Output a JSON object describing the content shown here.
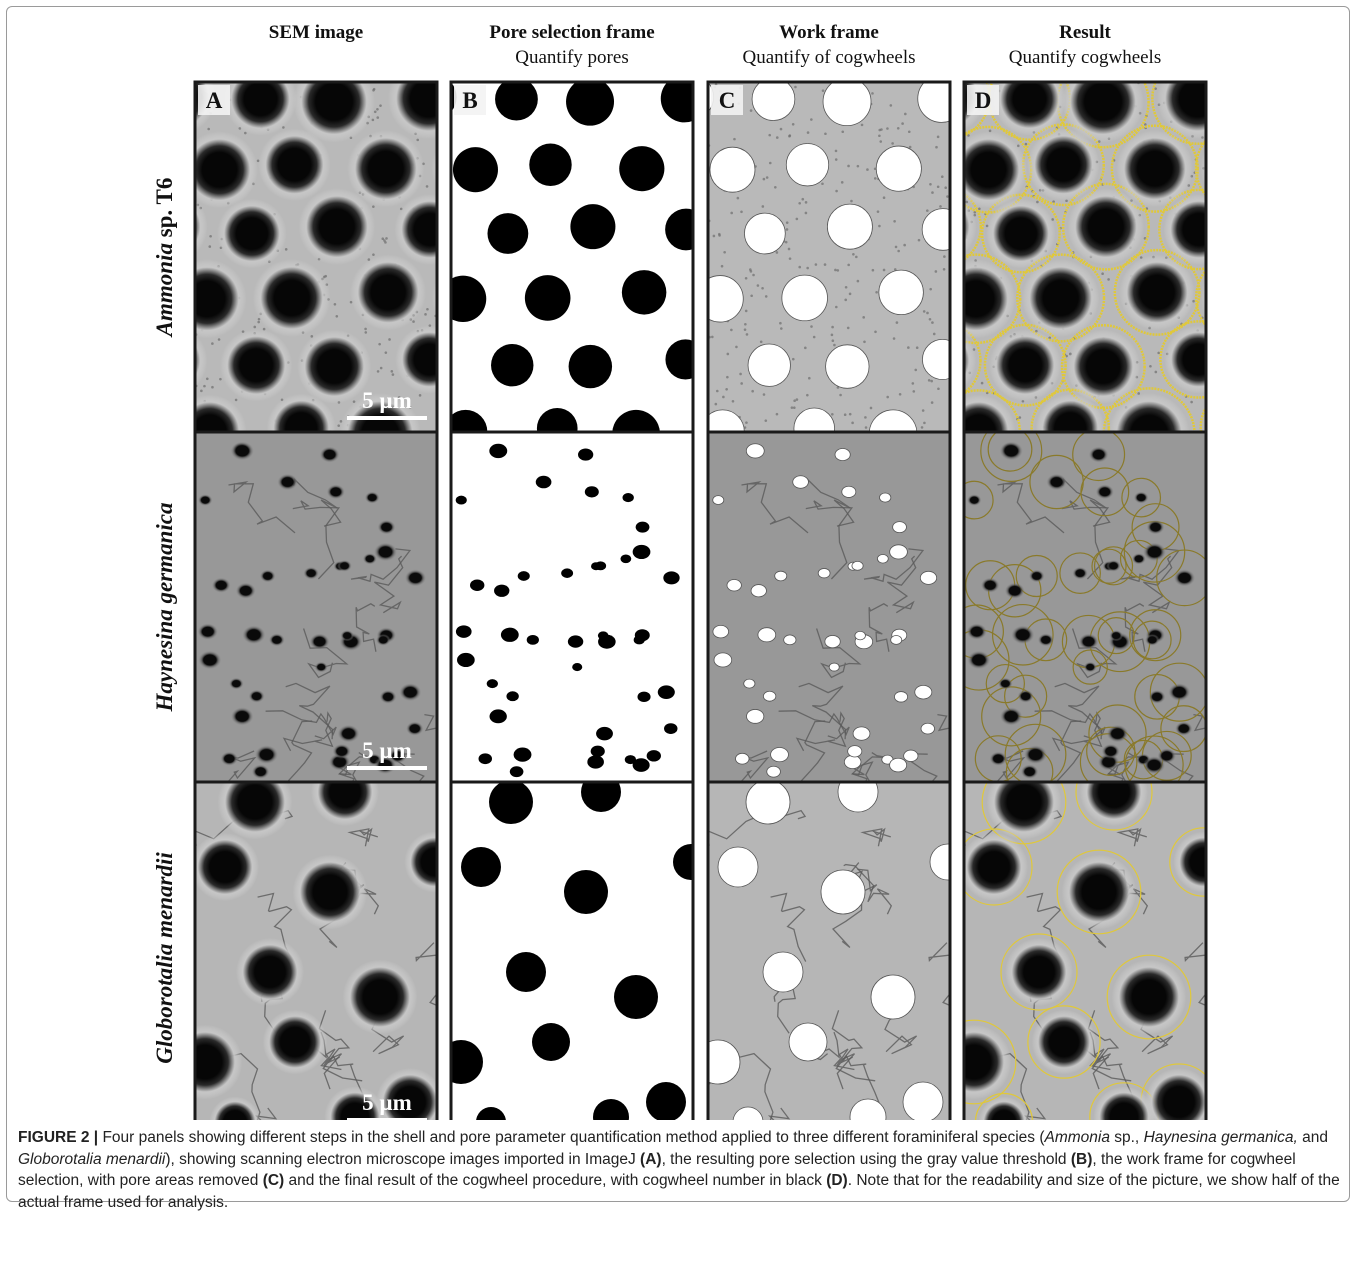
{
  "figure": {
    "columns": [
      {
        "title": "SEM image"
      },
      {
        "title": "Pore selection frame",
        "subtitle": "Quantify pores"
      },
      {
        "title": "Work frame",
        "subtitle": "Quantify of cogwheels"
      },
      {
        "title": "Result",
        "subtitle": "Quantify cogwheels"
      }
    ],
    "rows": [
      {
        "label": [
          {
            "text": "Ammonia",
            "italic": true
          },
          {
            "text": " sp. T6"
          }
        ]
      },
      {
        "label": [
          {
            "text": "Haynesina germanica",
            "italic": true
          }
        ]
      },
      {
        "label": [
          {
            "text": "Globorotalia menardii",
            "italic": true
          }
        ]
      }
    ],
    "panel_letters": [
      "A",
      "B",
      "C",
      "D"
    ],
    "scale_bar": "5 µm"
  },
  "caption": {
    "segments": [
      {
        "text": "FIGURE 2 |",
        "bold": true
      },
      {
        "text": " Four panels showing different steps in the shell and pore parameter quantification method applied to three different foraminiferal species ("
      },
      {
        "text": "Ammonia",
        "italic": true
      },
      {
        "text": " sp., "
      },
      {
        "text": "Haynesina germanica,",
        "italic": true
      },
      {
        "text": " and "
      },
      {
        "text": "Globorotalia menardii",
        "italic": true
      },
      {
        "text": "), showing scanning electron microscope images imported in ImageJ "
      },
      {
        "text": "(A)",
        "bold": true
      },
      {
        "text": ", the resulting pore selection using the gray value threshold "
      },
      {
        "text": "(B)",
        "bold": true
      },
      {
        "text": ", the work frame for cogwheel selection, with pore areas removed "
      },
      {
        "text": "(C)",
        "bold": true
      },
      {
        "text": " and the final result of the cogwheel procedure, with cogwheel number in black "
      },
      {
        "text": "(D)",
        "bold": true
      },
      {
        "text": ". Note that for the readability and size of the picture, we show half of the actual frame used for analysis."
      }
    ]
  }
}
